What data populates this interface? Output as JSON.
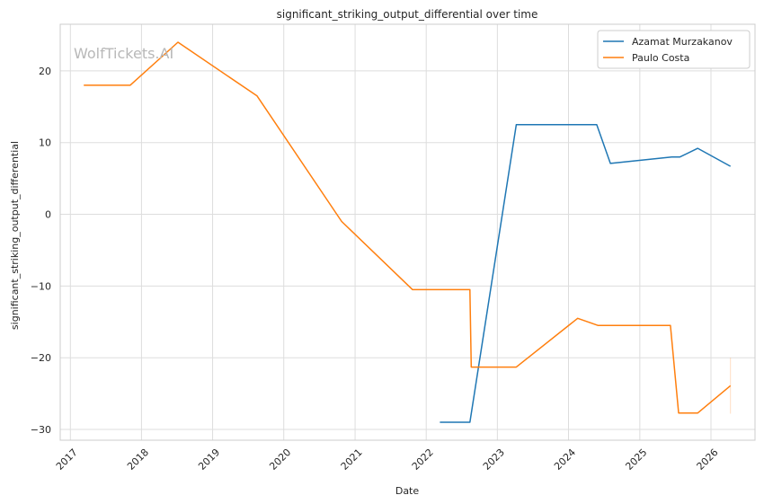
{
  "watermark": "WolfTickets.AI",
  "chart_data": {
    "type": "line",
    "title": "significant_striking_output_differential over time",
    "xlabel": "Date",
    "ylabel": "significant_striking_output_differential",
    "x_ticks": [
      "2017",
      "2018",
      "2019",
      "2020",
      "2021",
      "2022",
      "2023",
      "2024",
      "2025",
      "2026"
    ],
    "y_ticks": [
      -30,
      -20,
      -10,
      0,
      10,
      20
    ],
    "xlim": [
      "2016-11-10",
      "2026-08-15"
    ],
    "ylim": [
      -31.5,
      26.5
    ],
    "grid": true,
    "legend_position": "top-right",
    "series": [
      {
        "name": "Azamat Murzakanov",
        "color": "#1f77b4",
        "points": [
          {
            "x": "2022-03-12",
            "y": -29.0
          },
          {
            "x": "2022-08-13",
            "y": -29.0
          },
          {
            "x": "2023-04-08",
            "y": 12.5
          },
          {
            "x": "2024-05-25",
            "y": 12.5
          },
          {
            "x": "2024-08-03",
            "y": 7.1
          },
          {
            "x": "2025-06-14",
            "y": 8.0
          },
          {
            "x": "2025-07-26",
            "y": 8.0
          },
          {
            "x": "2025-10-25",
            "y": 9.2
          },
          {
            "x": "2026-04-11",
            "y": 6.7
          }
        ]
      },
      {
        "name": "Paulo Costa",
        "color": "#ff7f0e",
        "points": [
          {
            "x": "2017-03-11",
            "y": 18.0
          },
          {
            "x": "2017-11-04",
            "y": 18.0
          },
          {
            "x": "2018-07-07",
            "y": 24.0
          },
          {
            "x": "2019-08-17",
            "y": 16.5
          },
          {
            "x": "2020-10-24",
            "y": -1.0
          },
          {
            "x": "2021-10-23",
            "y": -10.5
          },
          {
            "x": "2022-08-13",
            "y": -10.5
          },
          {
            "x": "2022-08-20",
            "y": -21.3
          },
          {
            "x": "2023-04-08",
            "y": -21.3
          },
          {
            "x": "2024-02-17",
            "y": -14.5
          },
          {
            "x": "2024-06-01",
            "y": -15.5
          },
          {
            "x": "2025-06-07",
            "y": -15.5
          },
          {
            "x": "2025-07-19",
            "y": -27.7
          },
          {
            "x": "2025-10-25",
            "y": -27.7
          },
          {
            "x": "2026-04-11",
            "y": -23.9
          }
        ]
      }
    ]
  }
}
